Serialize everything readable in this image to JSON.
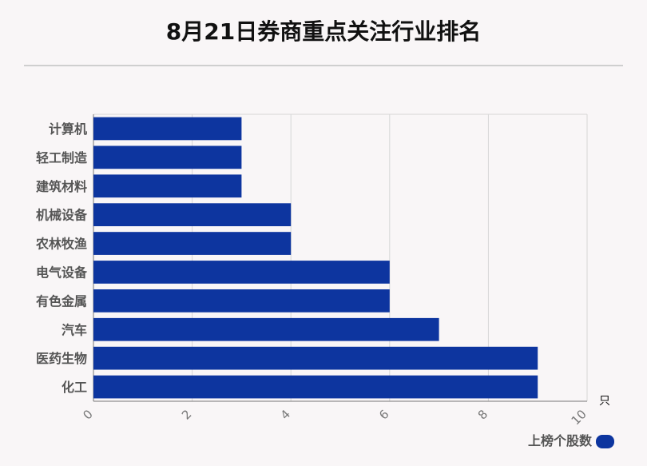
{
  "chart_data": {
    "type": "bar",
    "orientation": "horizontal",
    "title": "8月21日券商重点关注行业排名",
    "categories": [
      "计算机",
      "轻工制造",
      "建筑材料",
      "机械设备",
      "农林牧渔",
      "电气设备",
      "有色金属",
      "汽车",
      "医药生物",
      "化工"
    ],
    "series": [
      {
        "name": "上榜个股数",
        "values": [
          3,
          3,
          3,
          4,
          4,
          6,
          6,
          7,
          9,
          9
        ],
        "color": "#0d359f"
      }
    ],
    "xlim": [
      0,
      10
    ],
    "xticks": [
      0,
      2,
      4,
      6,
      8,
      10
    ],
    "unit": "只",
    "grid": true,
    "legend_position": "bottom-right"
  }
}
